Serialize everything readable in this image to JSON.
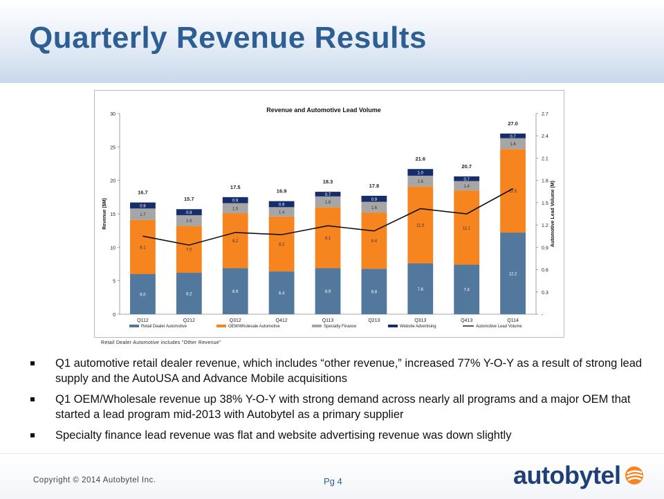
{
  "slide": {
    "title": "Quarterly Revenue Results",
    "footnote": "Retail Dealer Automotive includes \"Other Revenue\"",
    "bullets": [
      "Q1 automotive retail dealer revenue, which includes “other revenue,” increased 77% Y-O-Y as a result of strong lead supply and the AutoUSA and Advance Mobile acquisitions",
      "Q1 OEM/Wholesale revenue up 38% Y-O-Y with strong demand across nearly all programs and a major OEM that started a lead program mid-2013 with Autobytel as a primary supplier",
      "Specialty finance lead revenue was flat and website advertising revenue was down slightly"
    ],
    "copyright": "Copyright © 2014 Autobytel Inc.",
    "page": "Pg 4",
    "logo_text": "autobytel"
  },
  "colors": {
    "title": "#2d5f95",
    "retail": "#52789d",
    "oem": "#f7851f",
    "specialty": "#a6a6a6",
    "website": "#162d6c",
    "line": "#111111"
  },
  "chart_data": {
    "type": "bar",
    "stacked": true,
    "title": "Revenue and Automotive Lead Volume",
    "ylabel": "Revenue ($M)",
    "y2label": "Automotive Lead Volume (M)",
    "ylim": [
      0,
      30
    ],
    "y2lim": [
      0,
      2.7
    ],
    "yticks": [
      "0",
      "5",
      "10",
      "15",
      "20",
      "25",
      "30"
    ],
    "y2ticks": [
      "-",
      "0.3",
      "0.6",
      "0.9",
      "1.2",
      "1.5",
      "1.8",
      "2.1",
      "2.4",
      "2.7"
    ],
    "categories": [
      "Q112",
      "Q212",
      "Q312",
      "Q412",
      "Q113",
      "Q213",
      "Q313",
      "Q413",
      "Q114"
    ],
    "series": [
      {
        "name": "Retail Dealer Automotive",
        "values": [
          6.0,
          6.2,
          6.9,
          6.4,
          6.9,
          6.8,
          7.6,
          7.4,
          12.2
        ],
        "labels": [
          "6.0",
          "6.2",
          "6.9",
          "6.4",
          "6.9",
          "6.8",
          "7.6",
          "7.4",
          "12.2"
        ]
      },
      {
        "name": "OEM/Wholesale Automotive",
        "values": [
          8.1,
          7.0,
          8.2,
          8.2,
          9.1,
          8.4,
          11.5,
          11.1,
          12.5
        ],
        "labels": [
          "8.1",
          "7.0",
          "8.2",
          "8.2",
          "9.1",
          "8.4",
          "11.5",
          "11.1",
          "12.5"
        ]
      },
      {
        "name": "Specialty Finance",
        "values": [
          1.7,
          1.6,
          1.5,
          1.4,
          1.6,
          1.6,
          1.6,
          1.4,
          1.6
        ],
        "labels": [
          "1.7",
          "1.6",
          "1.5",
          "1.4",
          "1.6",
          "1.6",
          "1.6",
          "1.4",
          "1.6"
        ]
      },
      {
        "name": "Website Advertising",
        "values": [
          0.9,
          0.9,
          0.9,
          0.9,
          0.7,
          0.9,
          1.0,
          0.7,
          0.7
        ],
        "labels": [
          "0.9",
          "0.9",
          "0.9",
          "0.9",
          "0.7",
          "0.9",
          "1.0",
          "0.7",
          "0.7"
        ]
      }
    ],
    "totals": [
      "16.7",
      "15.7",
      "17.5",
      "16.9",
      "18.3",
      "17.8",
      "21.6",
      "20.7",
      "27.0"
    ],
    "line_series": {
      "name": "Automotive Lead Volume",
      "axis": "right",
      "values": [
        1.05,
        0.93,
        1.1,
        1.07,
        1.19,
        1.12,
        1.42,
        1.35,
        1.69
      ]
    },
    "legend_position": "bottom"
  }
}
